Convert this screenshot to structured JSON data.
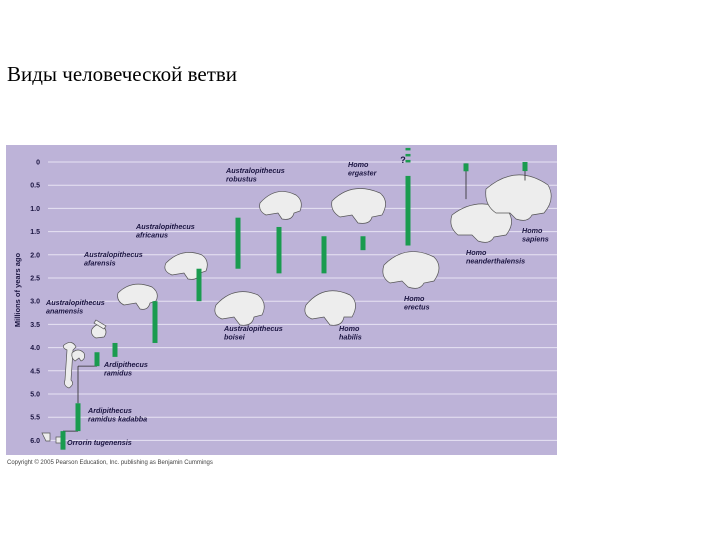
{
  "slide": {
    "title": "Виды человеческой ветви"
  },
  "chart_data": {
    "type": "timeline",
    "ylabel": "Millions of years ago",
    "yticks": [
      "0",
      "0.5",
      "1.0",
      "1.5",
      "2.0",
      "2.5",
      "3.0",
      "3.5",
      "4.0",
      "4.5",
      "5.0",
      "5.5",
      "6.0"
    ],
    "ylim": [
      0,
      6.3
    ],
    "species": [
      {
        "name": "Orrorin tugenensis",
        "start": 6.2,
        "end": 5.8
      },
      {
        "name": "Ardipithecus ramidus kadabba",
        "start": 5.8,
        "end": 5.2
      },
      {
        "name": "Ardipithecus ramidus",
        "start": 4.4,
        "end": 4.1
      },
      {
        "name": "Australopithecus anamensis",
        "start": 4.2,
        "end": 3.9
      },
      {
        "name": "Australopithecus afarensis",
        "start": 3.9,
        "end": 3.0
      },
      {
        "name": "Australopithecus africanus",
        "start": 3.0,
        "end": 2.3
      },
      {
        "name": "Australopithecus robustus",
        "start": 2.3,
        "end": 1.2
      },
      {
        "name": "Australopithecus boisei",
        "start": 2.4,
        "end": 1.4
      },
      {
        "name": "Homo habilis",
        "start": 2.4,
        "end": 1.6
      },
      {
        "name": "Homo ergaster",
        "start": 1.9,
        "end": 1.6
      },
      {
        "name": "Homo erectus",
        "start": 1.8,
        "end": 0.3,
        "uncertain_top": true
      },
      {
        "name": "Homo neanderthalensis",
        "start": 0.2,
        "end": 0.03
      },
      {
        "name": "Homo sapiens",
        "start": 0.195,
        "end": 0
      }
    ],
    "labels": [
      {
        "l1": "Australopithecus",
        "l2": "robustus"
      },
      {
        "l1": "Homo",
        "l2": "ergaster"
      },
      {
        "l1": "Australopithecus",
        "l2": "africanus"
      },
      {
        "l1": "Homo",
        "l2": "sapiens"
      },
      {
        "l1": "Australopithecus",
        "l2": "afarensis"
      },
      {
        "l1": "Homo",
        "l2": "neanderthalensis"
      },
      {
        "l1": "Australopithecus",
        "l2": "anamensis"
      },
      {
        "l1": "Homo",
        "l2": "erectus"
      },
      {
        "l1": "Australopithecus",
        "l2": "boisei"
      },
      {
        "l1": "Homo",
        "l2": "habilis"
      },
      {
        "l1": "Ardipithecus",
        "l2": "ramidus"
      },
      {
        "l1": "Ardipithecus",
        "l2": "ramidus kadabba"
      },
      {
        "l1": "Orrorin tugenensis",
        "l2": ""
      }
    ],
    "question_mark": "?",
    "colors": {
      "background": "#bdb3d8",
      "gridline": "#e8e3f3",
      "bar": "#1a9b4f",
      "connector": "#2a2a2a",
      "label": "#1a1440"
    }
  },
  "footer": {
    "copyright": "Copyright © 2005 Pearson Education, Inc. publishing as Benjamin Cummings"
  }
}
